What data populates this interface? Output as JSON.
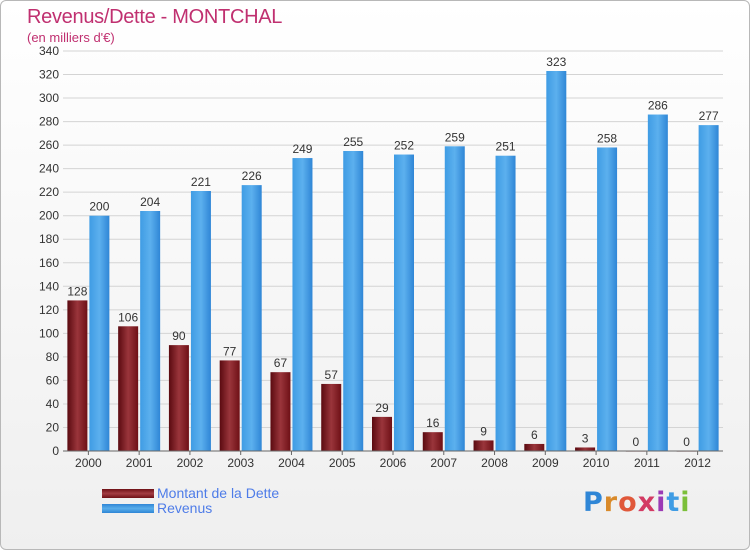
{
  "title": "Revenus/Dette - MONTCHAL",
  "subtitle": "(en milliers d'€)",
  "logo": {
    "text": "Proxiti"
  },
  "colors": {
    "dette": "#6e1016",
    "dette_light": "#a33d43",
    "revenus": "#2f86d6",
    "revenus_light": "#58adea",
    "title": "#c03070",
    "legend_text": "#4e7ce8"
  },
  "legend": {
    "items": [
      {
        "label": "Montant de la Dette"
      },
      {
        "label": "Revenus"
      }
    ]
  },
  "chart_data": {
    "type": "bar",
    "title": "Revenus/Dette - MONTCHAL",
    "subtitle": "(en milliers d'€)",
    "xlabel": "",
    "ylabel": "",
    "ylim": [
      0,
      340
    ],
    "yticks": [
      0,
      20,
      40,
      60,
      80,
      100,
      120,
      140,
      160,
      180,
      200,
      220,
      240,
      260,
      280,
      300,
      320,
      340
    ],
    "grid": true,
    "categories": [
      "2000",
      "2001",
      "2002",
      "2003",
      "2004",
      "2005",
      "2006",
      "2007",
      "2008",
      "2009",
      "2010",
      "2011",
      "2012"
    ],
    "series": [
      {
        "name": "Montant de la Dette",
        "values": [
          128,
          106,
          90,
          77,
          67,
          57,
          29,
          16,
          9,
          6,
          3,
          0,
          0
        ]
      },
      {
        "name": "Revenus",
        "values": [
          200,
          204,
          221,
          226,
          249,
          255,
          252,
          259,
          251,
          323,
          258,
          286,
          277
        ]
      }
    ],
    "legend_position": "bottom-left"
  }
}
